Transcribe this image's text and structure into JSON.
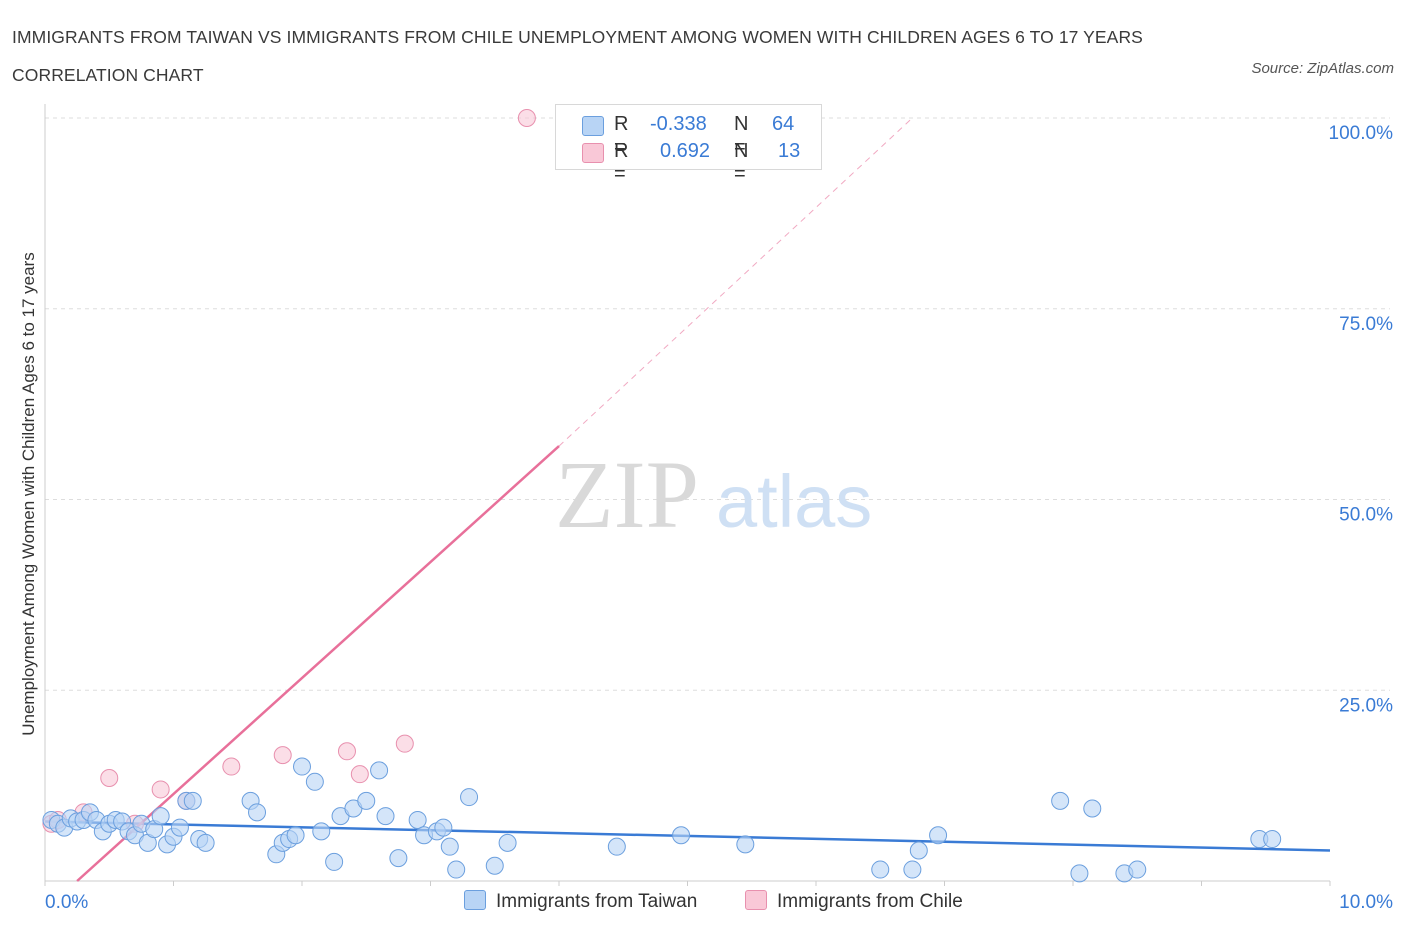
{
  "title": "IMMIGRANTS FROM TAIWAN VS IMMIGRANTS FROM CHILE UNEMPLOYMENT AMONG WOMEN WITH CHILDREN AGES 6 TO 17 YEARS CORRELATION CHART",
  "source": "Source: ZipAtlas.com",
  "watermark": {
    "zip": "ZIP",
    "atlas": "atlas"
  },
  "legend": {
    "rows": [
      {
        "r_label": "R =",
        "r_value": "-0.338",
        "n_label": "N =",
        "n_value": "64"
      },
      {
        "r_label": "R =",
        "r_value": "0.692",
        "n_label": "N =",
        "n_value": "13"
      }
    ]
  },
  "bottom_legend": {
    "taiwan": "Immigrants from Taiwan",
    "chile": "Immigrants from Chile"
  },
  "colors": {
    "taiwan_fill": "#b8d4f5",
    "taiwan_stroke": "#6b9fde",
    "taiwan_line": "#3a7bd5",
    "chile_fill": "#f9c8d7",
    "chile_stroke": "#e890ae",
    "chile_line": "#e8709a",
    "tick_label": "#3a7bd5",
    "grid": "#dddddd"
  },
  "chart_data": {
    "type": "scatter",
    "title": "IMMIGRANTS FROM TAIWAN VS IMMIGRANTS FROM CHILE UNEMPLOYMENT AMONG WOMEN WITH CHILDREN AGES 6 TO 17 YEARS CORRELATION CHART",
    "xlabel": "",
    "ylabel": "Unemployment Among Women with Children Ages 6 to 17 years",
    "xlim": [
      0,
      10
    ],
    "ylim": [
      0,
      100
    ],
    "x_tick_labels": [
      {
        "value": 0,
        "label": "0.0%"
      },
      {
        "value": 10,
        "label": "10.0%"
      }
    ],
    "y_tick_labels": [
      {
        "value": 25,
        "label": "25.0%"
      },
      {
        "value": 50,
        "label": "50.0%"
      },
      {
        "value": 75,
        "label": "75.0%"
      },
      {
        "value": 100,
        "label": "100.0%"
      }
    ],
    "series": [
      {
        "name": "Immigrants from Taiwan",
        "r": -0.338,
        "n": 64,
        "trend": {
          "x0": 0,
          "y0": 7.8,
          "x1": 10,
          "y1": 4.0
        },
        "points": [
          [
            0.05,
            8.0
          ],
          [
            0.1,
            7.5
          ],
          [
            0.15,
            7.0
          ],
          [
            0.2,
            8.2
          ],
          [
            0.25,
            7.8
          ],
          [
            0.3,
            8.0
          ],
          [
            0.35,
            9.0
          ],
          [
            0.4,
            8.0
          ],
          [
            0.45,
            6.5
          ],
          [
            0.5,
            7.5
          ],
          [
            0.55,
            8.0
          ],
          [
            0.6,
            7.8
          ],
          [
            0.65,
            6.5
          ],
          [
            0.7,
            6.0
          ],
          [
            0.75,
            7.5
          ],
          [
            0.8,
            5.0
          ],
          [
            0.85,
            6.8
          ],
          [
            0.9,
            8.5
          ],
          [
            0.95,
            4.8
          ],
          [
            1.0,
            5.8
          ],
          [
            1.05,
            7.0
          ],
          [
            1.1,
            10.5
          ],
          [
            1.15,
            10.5
          ],
          [
            1.2,
            5.5
          ],
          [
            1.25,
            5.0
          ],
          [
            1.6,
            10.5
          ],
          [
            1.65,
            9.0
          ],
          [
            1.8,
            3.5
          ],
          [
            1.85,
            5.0
          ],
          [
            1.9,
            5.5
          ],
          [
            1.95,
            6.0
          ],
          [
            2.0,
            15.0
          ],
          [
            2.1,
            13.0
          ],
          [
            2.15,
            6.5
          ],
          [
            2.25,
            2.5
          ],
          [
            2.3,
            8.5
          ],
          [
            2.4,
            9.5
          ],
          [
            2.5,
            10.5
          ],
          [
            2.6,
            14.5
          ],
          [
            2.65,
            8.5
          ],
          [
            2.75,
            3.0
          ],
          [
            2.9,
            8.0
          ],
          [
            2.95,
            6.0
          ],
          [
            3.05,
            6.5
          ],
          [
            3.1,
            7.0
          ],
          [
            3.15,
            4.5
          ],
          [
            3.2,
            1.5
          ],
          [
            3.3,
            11.0
          ],
          [
            3.5,
            2.0
          ],
          [
            3.6,
            5.0
          ],
          [
            4.45,
            4.5
          ],
          [
            4.95,
            6.0
          ],
          [
            5.45,
            4.8
          ],
          [
            6.5,
            1.5
          ],
          [
            6.75,
            1.5
          ],
          [
            6.8,
            4.0
          ],
          [
            6.95,
            6.0
          ],
          [
            7.9,
            10.5
          ],
          [
            8.05,
            1.0
          ],
          [
            8.15,
            9.5
          ],
          [
            8.4,
            1.0
          ],
          [
            8.5,
            1.5
          ],
          [
            9.45,
            5.5
          ],
          [
            9.55,
            5.5
          ]
        ]
      },
      {
        "name": "Immigrants from Chile",
        "r": 0.692,
        "n": 13,
        "trend": {
          "x0": 0.25,
          "y0": 0,
          "x1": 4.0,
          "y1": 57.0,
          "extended_to": {
            "x": 6.75,
            "y": 100
          }
        },
        "points": [
          [
            0.05,
            7.5
          ],
          [
            0.1,
            8.0
          ],
          [
            0.3,
            9.0
          ],
          [
            0.5,
            13.5
          ],
          [
            0.7,
            7.5
          ],
          [
            0.9,
            12.0
          ],
          [
            1.1,
            10.5
          ],
          [
            1.45,
            15.0
          ],
          [
            1.85,
            16.5
          ],
          [
            2.35,
            17.0
          ],
          [
            2.45,
            14.0
          ],
          [
            2.8,
            18.0
          ],
          [
            3.75,
            100.0
          ]
        ]
      }
    ]
  }
}
